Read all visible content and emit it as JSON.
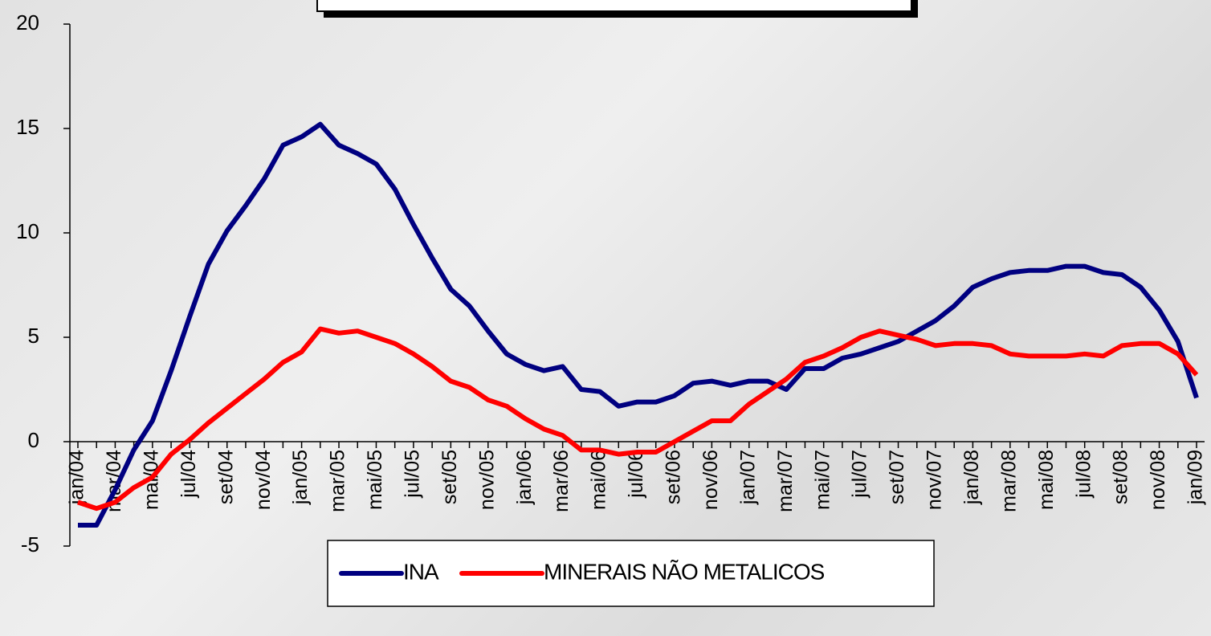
{
  "chart_data": {
    "type": "line",
    "categories": [
      "jan/04",
      null,
      "mar/04",
      null,
      "mai/04",
      null,
      "jul/04",
      null,
      "set/04",
      null,
      "nov/04",
      null,
      "jan/05",
      null,
      "mar/05",
      null,
      "mai/05",
      null,
      "jul/05",
      null,
      "set/05",
      null,
      "nov/05",
      null,
      "jan/06",
      null,
      "mar/06",
      null,
      "mai/06",
      null,
      "jul/06",
      null,
      "set/06",
      null,
      "nov/06",
      null,
      "jan/07",
      null,
      "mar/07",
      null,
      "mai/07",
      null,
      "jul/07",
      null,
      "set/07",
      null,
      "nov/07",
      null,
      "jan/08",
      null,
      "mar/08",
      null,
      "mai/08",
      null,
      "jul/08",
      null,
      "set/08",
      null,
      "nov/08",
      null,
      "jan/09"
    ],
    "series": [
      {
        "name": "INA",
        "color": "#000080",
        "values": [
          -4.0,
          -4.0,
          -2.3,
          -0.4,
          1.0,
          3.4,
          6.0,
          8.5,
          10.1,
          11.3,
          12.6,
          14.2,
          14.6,
          15.2,
          14.2,
          13.8,
          13.3,
          12.1,
          10.4,
          8.8,
          7.3,
          6.5,
          5.3,
          4.2,
          3.7,
          3.4,
          3.6,
          2.5,
          2.4,
          1.7,
          1.9,
          1.9,
          2.2,
          2.8,
          2.9,
          2.7,
          2.9,
          2.9,
          2.5,
          3.5,
          3.5,
          4.0,
          4.2,
          4.5,
          4.8,
          5.3,
          5.8,
          6.5,
          7.4,
          7.8,
          8.1,
          8.2,
          8.2,
          8.4,
          8.4,
          8.1,
          8.0,
          7.4,
          6.3,
          4.8,
          2.1
        ]
      },
      {
        "name": "MINERAIS NÃO METALICOS",
        "color": "#ff0000",
        "values": [
          -2.9,
          -3.2,
          -2.9,
          -2.2,
          -1.7,
          -0.6,
          0.1,
          0.9,
          1.6,
          2.3,
          3.0,
          3.8,
          4.3,
          5.4,
          5.2,
          5.3,
          5.0,
          4.7,
          4.2,
          3.6,
          2.9,
          2.6,
          2.0,
          1.7,
          1.1,
          0.6,
          0.3,
          -0.4,
          -0.4,
          -0.6,
          -0.5,
          -0.5,
          0.0,
          0.5,
          1.0,
          1.0,
          1.8,
          2.4,
          3.0,
          3.8,
          4.1,
          4.5,
          5.0,
          5.3,
          5.1,
          4.9,
          4.6,
          4.7,
          4.7,
          4.6,
          4.2,
          4.1,
          4.1,
          4.1,
          4.2,
          4.1,
          4.6,
          4.7,
          4.7,
          4.2,
          3.2
        ]
      }
    ],
    "ylim": [
      -5,
      20
    ],
    "yticks": [
      -5,
      0,
      5,
      10,
      15,
      20
    ]
  }
}
